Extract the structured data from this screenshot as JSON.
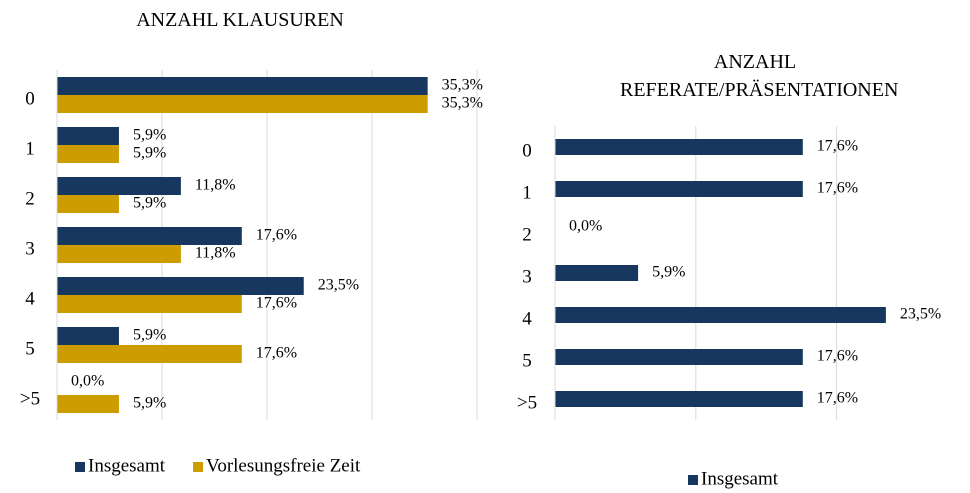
{
  "chart_data": [
    {
      "type": "bar",
      "orientation": "horizontal",
      "title": "ANZAHL KLAUSUREN",
      "categories": [
        "0",
        "1",
        "2",
        "3",
        "4",
        "5",
        ">5"
      ],
      "series": [
        {
          "name": "Insgesamt",
          "color": "#17375e",
          "values": [
            35.3,
            5.9,
            11.8,
            17.6,
            23.5,
            5.9,
            0.0
          ],
          "value_labels": [
            "35,3%",
            "5,9%",
            "11,8%",
            "17,6%",
            "23,5%",
            "5,9%",
            "0,0%"
          ]
        },
        {
          "name": "Vorlesungsfreie Zeit",
          "color": "#cc9c00",
          "values": [
            35.3,
            5.9,
            5.9,
            11.8,
            17.6,
            17.6,
            5.9
          ],
          "value_labels": [
            "35,3%",
            "5,9%",
            "5,9%",
            "11,8%",
            "17,6%",
            "17,6%",
            "5,9%"
          ]
        }
      ],
      "xlim": [
        0,
        40
      ],
      "xticks": [
        0,
        10,
        20,
        30,
        40
      ],
      "grid": true,
      "legend": "bottom"
    },
    {
      "type": "bar",
      "orientation": "horizontal",
      "title": "ANZAHL REFERATE/PRÄSENTATIONEN",
      "categories": [
        "0",
        "1",
        "2",
        "3",
        "4",
        "5",
        ">5"
      ],
      "series": [
        {
          "name": "Insgesamt",
          "color": "#17375e",
          "values": [
            17.6,
            17.6,
            0.0,
            5.9,
            23.5,
            17.6,
            17.6
          ],
          "value_labels": [
            "17,6%",
            "17,6%",
            "0,0%",
            "5,9%",
            "23,5%",
            "17,6%",
            "17,6%"
          ]
        }
      ],
      "xlim": [
        0,
        25
      ],
      "xticks": [
        0,
        10,
        20
      ],
      "grid": true,
      "legend": "bottom"
    }
  ]
}
